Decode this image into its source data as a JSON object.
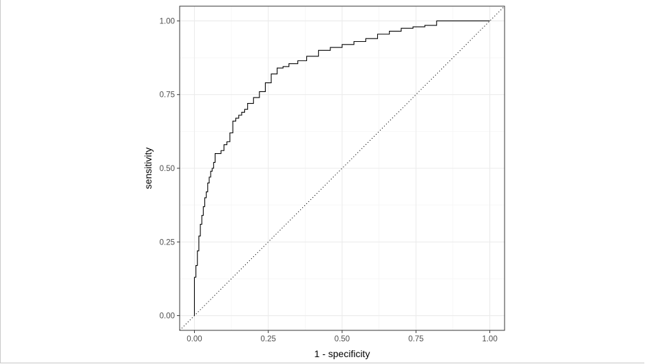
{
  "chart_data": {
    "type": "line",
    "xlabel": "1 - specificity",
    "ylabel": "sensitivity",
    "xlim": [
      -0.05,
      1.05
    ],
    "ylim": [
      -0.05,
      1.05
    ],
    "x_ticks": [
      0.0,
      0.25,
      0.5,
      0.75,
      1.0
    ],
    "y_ticks": [
      0.0,
      0.25,
      0.5,
      0.75,
      1.0
    ],
    "x_tick_labels": [
      "0.00",
      "0.25",
      "0.50",
      "0.75",
      "1.00"
    ],
    "y_tick_labels": [
      "0.00",
      "0.25",
      "0.50",
      "0.75",
      "1.00"
    ],
    "grid": true,
    "theme": "bw",
    "series": [
      {
        "style": "step",
        "color": "#000000",
        "x": [
          0.0,
          0.0,
          0.005,
          0.01,
          0.015,
          0.02,
          0.025,
          0.03,
          0.035,
          0.04,
          0.045,
          0.05,
          0.055,
          0.06,
          0.065,
          0.07,
          0.08,
          0.09,
          0.1,
          0.11,
          0.12,
          0.13,
          0.14,
          0.15,
          0.16,
          0.17,
          0.18,
          0.2,
          0.22,
          0.24,
          0.26,
          0.28,
          0.3,
          0.32,
          0.35,
          0.38,
          0.42,
          0.46,
          0.5,
          0.54,
          0.58,
          0.62,
          0.66,
          0.7,
          0.74,
          0.78,
          0.82,
          0.86,
          0.87,
          1.0
        ],
        "y": [
          0.0,
          0.09,
          0.13,
          0.17,
          0.22,
          0.27,
          0.31,
          0.34,
          0.37,
          0.4,
          0.42,
          0.45,
          0.47,
          0.49,
          0.5,
          0.52,
          0.55,
          0.55,
          0.56,
          0.58,
          0.59,
          0.62,
          0.66,
          0.67,
          0.68,
          0.69,
          0.7,
          0.72,
          0.74,
          0.76,
          0.79,
          0.82,
          0.84,
          0.845,
          0.855,
          0.865,
          0.88,
          0.9,
          0.91,
          0.92,
          0.93,
          0.94,
          0.955,
          0.965,
          0.975,
          0.98,
          0.985,
          1.0,
          1.0,
          1.0
        ]
      }
    ],
    "reference_line": {
      "x": [
        -0.05,
        1.05
      ],
      "y": [
        -0.05,
        1.05
      ],
      "style": "dotted",
      "color": "#000000"
    }
  }
}
